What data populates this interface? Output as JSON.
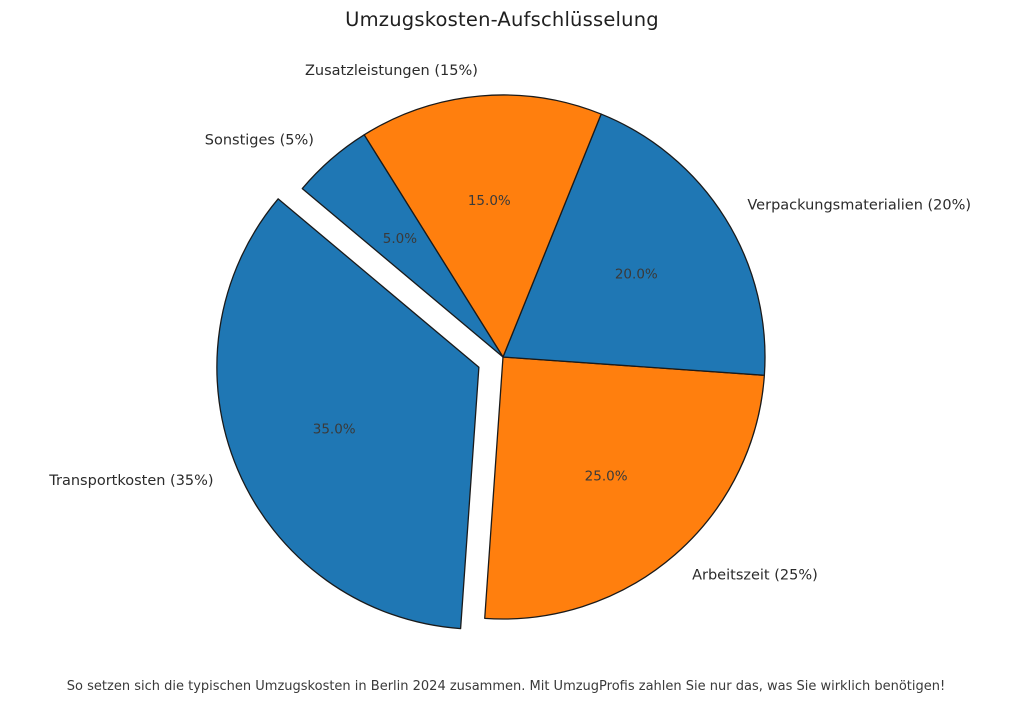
{
  "chart_data": {
    "type": "pie",
    "title": "Umzugskosten-Aufschlüsselung",
    "caption": "So setzen sich die typischen Umzugskosten in Berlin 2024 zusammen. Mit UmzugProfis zahlen Sie nur das, was Sie wirklich benötigen!",
    "startangle": 140,
    "counterclock": true,
    "labeldistance": 1.1,
    "pctdistance": 0.6,
    "edge_color": "#1a1a1a",
    "slices": [
      {
        "label": "Transportkosten",
        "value": 35,
        "display_label": "Transportkosten (35%)",
        "pct_label": "35.0%",
        "color": "#1f77b4",
        "explode": 0.1
      },
      {
        "label": "Arbeitszeit",
        "value": 25,
        "display_label": "Arbeitszeit (25%)",
        "pct_label": "25.0%",
        "color": "#ff7f0e",
        "explode": 0
      },
      {
        "label": "Verpackungsmaterialien",
        "value": 20,
        "display_label": "Verpackungsmaterialien (20%)",
        "pct_label": "20.0%",
        "color": "#1f77b4",
        "explode": 0
      },
      {
        "label": "Zusatzleistungen",
        "value": 15,
        "display_label": "Zusatzleistungen (15%)",
        "pct_label": "15.0%",
        "color": "#ff7f0e",
        "explode": 0
      },
      {
        "label": "Sonstiges",
        "value": 5,
        "display_label": "Sonstiges (5%)",
        "pct_label": "5.0%",
        "color": "#1f77b4",
        "explode": 0
      }
    ]
  }
}
